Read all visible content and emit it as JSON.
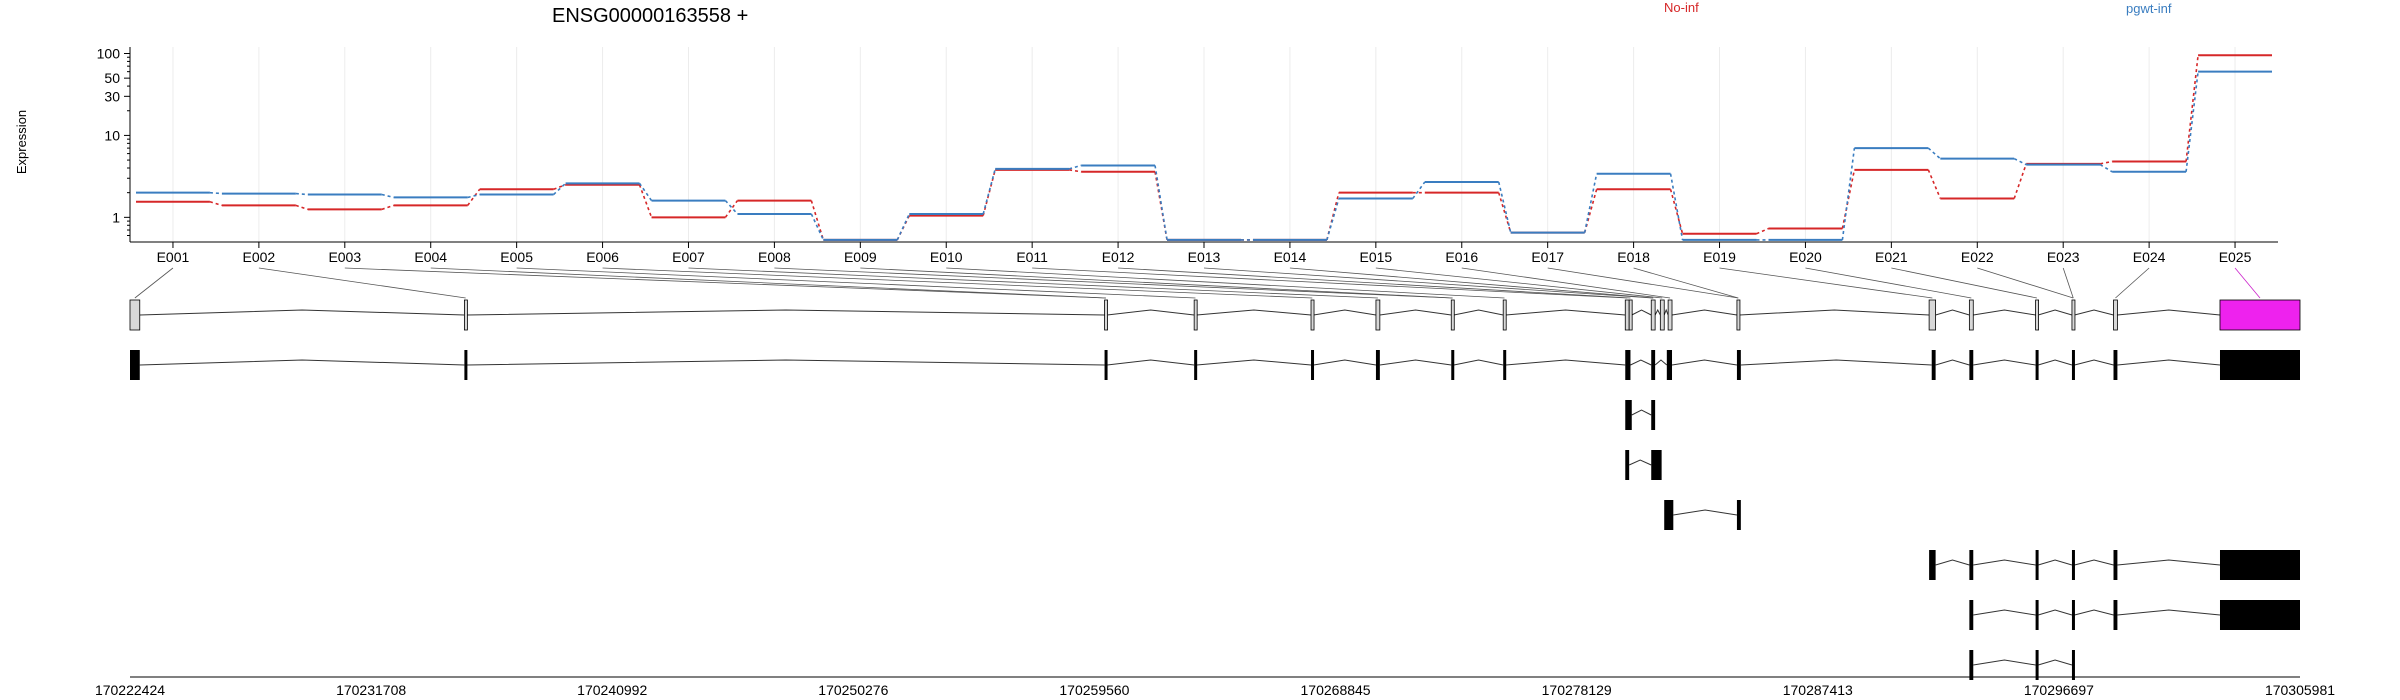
{
  "chart_data": {
    "type": "line",
    "title": "ENSG00000163558 +",
    "ylabel": "Expression",
    "yscale": "log",
    "ylim": [
      0.5,
      120
    ],
    "y_ticks": [
      1,
      10,
      30,
      50,
      100
    ],
    "categories": [
      "E001",
      "E002",
      "E003",
      "E004",
      "E005",
      "E006",
      "E007",
      "E008",
      "E009",
      "E010",
      "E011",
      "E012",
      "E013",
      "E014",
      "E015",
      "E016",
      "E017",
      "E018",
      "E019",
      "E020",
      "E021",
      "E022",
      "E023",
      "E024",
      "E025"
    ],
    "highlighted_exon": "E025",
    "series": [
      {
        "name": "No-inf",
        "color": "#d62728",
        "values": [
          1.55,
          1.4,
          1.25,
          1.4,
          2.2,
          2.5,
          1.0,
          1.6,
          0.53,
          1.05,
          3.8,
          3.6,
          0.53,
          0.53,
          2.0,
          2.0,
          0.65,
          2.2,
          0.63,
          0.73,
          3.8,
          1.7,
          4.5,
          4.8,
          95
        ]
      },
      {
        "name": "pgwt-inf",
        "color": "#3a7dc0",
        "values": [
          2.0,
          1.95,
          1.9,
          1.75,
          1.9,
          2.6,
          1.6,
          1.1,
          0.53,
          1.1,
          3.9,
          4.3,
          0.53,
          0.53,
          1.7,
          2.7,
          0.65,
          3.4,
          0.53,
          0.53,
          7.0,
          5.2,
          4.4,
          3.6,
          60
        ]
      }
    ],
    "genomic_ticks": [
      "170222424",
      "170231708",
      "170240992",
      "170250276",
      "170259560",
      "170268845",
      "170278129",
      "170287413",
      "170296697",
      "170305981"
    ],
    "gene_model": {
      "range": [
        170222424,
        170305981
      ],
      "exons": [
        [
          170222424,
          170222800
        ],
        [
          170235300,
          170235400
        ],
        [
          170259950,
          170260050
        ],
        [
          170263400,
          170263500
        ],
        [
          170267900,
          170268000
        ],
        [
          170270400,
          170270550
        ],
        [
          170273300,
          170273400
        ],
        [
          170275300,
          170275400
        ],
        [
          170280000,
          170280150
        ],
        [
          170280150,
          170280250
        ],
        [
          170281000,
          170281150
        ],
        [
          170281350,
          170281500
        ],
        [
          170281650,
          170281800
        ],
        [
          170284300,
          170284400
        ],
        [
          170291700,
          170291950
        ],
        [
          170293250,
          170293400
        ],
        [
          170295800,
          170295900
        ],
        [
          170297200,
          170297300
        ],
        [
          170298800,
          170298950
        ],
        [
          170302900,
          170305981
        ]
      ],
      "transcripts": [
        [
          [
            170222424,
            170222800
          ],
          [
            170235300,
            170235400
          ],
          [
            170259950,
            170260050
          ],
          [
            170263400,
            170263500
          ],
          [
            170267900,
            170268000
          ],
          [
            170270400,
            170270550
          ],
          [
            170273300,
            170273400
          ],
          [
            170275300,
            170275400
          ],
          [
            170280000,
            170280200
          ],
          [
            170281000,
            170281150
          ],
          [
            170281600,
            170281800
          ],
          [
            170284300,
            170284450
          ],
          [
            170291800,
            170291950
          ],
          [
            170293250,
            170293400
          ],
          [
            170295800,
            170295900
          ],
          [
            170297200,
            170297300
          ],
          [
            170298800,
            170298950
          ],
          [
            170302900,
            170305981
          ]
        ],
        [
          [
            170280000,
            170280250
          ],
          [
            170281000,
            170281150
          ]
        ],
        [
          [
            170280000,
            170280150
          ],
          [
            170281000,
            170281400
          ]
        ],
        [
          [
            170281500,
            170281850
          ],
          [
            170284300,
            170284450
          ]
        ],
        [
          [
            170291700,
            170291950
          ],
          [
            170293250,
            170293400
          ],
          [
            170295800,
            170295900
          ],
          [
            170297200,
            170297300
          ],
          [
            170298800,
            170298950
          ],
          [
            170302900,
            170305981
          ]
        ],
        [
          [
            170293250,
            170293400
          ],
          [
            170295800,
            170295900
          ],
          [
            170297200,
            170297300
          ],
          [
            170298800,
            170298950
          ],
          [
            170302900,
            170305981
          ]
        ],
        [
          [
            170293250,
            170293400
          ],
          [
            170295800,
            170295900
          ],
          [
            170297200,
            170297300
          ]
        ]
      ]
    }
  }
}
